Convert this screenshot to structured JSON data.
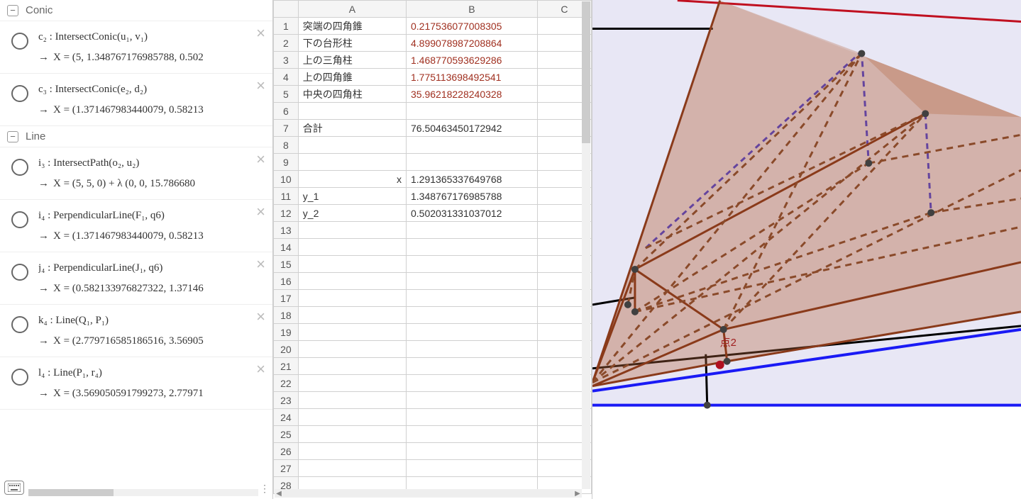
{
  "algebra": {
    "sections": [
      {
        "title": "Conic",
        "items": [
          {
            "name": "c₂",
            "def": "IntersectConic(u₁, v₁)",
            "result": "X = (5, 1.348767176985788, 0.502"
          },
          {
            "name": "c₃",
            "def": "IntersectConic(e₂, d₂)",
            "result": "X = (1.371467983440079, 0.58213"
          }
        ]
      },
      {
        "title": "Line",
        "items": [
          {
            "name": "i₃",
            "def": "IntersectPath(o₂, u₂)",
            "result": "X = (5, 5, 0) + λ (0, 0, 15.786680"
          },
          {
            "name": "i₄",
            "def": "PerpendicularLine(F₁, q6)",
            "result": "X = (1.371467983440079, 0.58213"
          },
          {
            "name": "j₄",
            "def": "PerpendicularLine(J₁, q6)",
            "result": "X = (0.582133976827322, 1.37146"
          },
          {
            "name": "k₄",
            "def": "Line(Q₁, P₁)",
            "result": "X = (2.779716585186516, 3.56905"
          },
          {
            "name": "l₄",
            "def": "Line(P₁, r₄)",
            "result": "X = (3.569050591799273, 2.77971"
          }
        ]
      }
    ]
  },
  "spreadsheet": {
    "columns": [
      "A",
      "B",
      "C"
    ],
    "col_widths": {
      "A": 140,
      "B": 170,
      "C": 70
    },
    "num_rows": 28,
    "rows": [
      {
        "r": 1,
        "A": "突端の四角錐",
        "B": "0.217536077008305",
        "b_red": true
      },
      {
        "r": 2,
        "A": "下の台形柱",
        "B": "4.899078987208864",
        "b_red": true
      },
      {
        "r": 3,
        "A": "上の三角柱",
        "B": "1.468770593629286",
        "b_red": true
      },
      {
        "r": 4,
        "A": "上の四角錐",
        "B": "1.775113698492541",
        "b_red": true
      },
      {
        "r": 5,
        "A": "中央の四角柱",
        "B": "35.96218228240328",
        "b_red": true
      },
      {
        "r": 6
      },
      {
        "r": 7,
        "A": "合計",
        "B": "76.50463450172942"
      },
      {
        "r": 8
      },
      {
        "r": 9
      },
      {
        "r": 10,
        "A": "x",
        "a_right": true,
        "B": "1.291365337649768"
      },
      {
        "r": 11,
        "A": "y_1",
        "B": "1.348767176985788"
      },
      {
        "r": 12,
        "A": "y_2",
        "B": "0.502031331037012"
      }
    ]
  },
  "graphics": {
    "background": "#e8e7f5",
    "label": "点2",
    "label_color": "#a02020",
    "colors": {
      "poly_fill": "rgba(180,100,60,0.45)",
      "poly_stroke": "#a04020",
      "dashed": "#8a4a2a",
      "blue": "#1a1af5",
      "blue_dash": "#3030e0",
      "black": "#000000",
      "red_line": "#c01020",
      "point": "#404040",
      "red_point": "#b01020"
    }
  }
}
